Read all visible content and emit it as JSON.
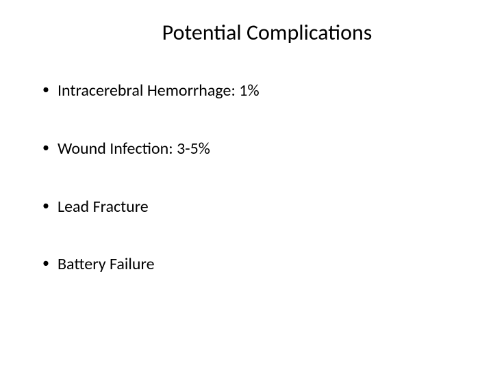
{
  "slide": {
    "title": "Potential Complications",
    "title_fontsize": 32,
    "title_color": "#000000",
    "background_color": "#ffffff",
    "bullets": [
      {
        "text": "Intracerebral Hemorrhage: 1%"
      },
      {
        "text": "Wound Infection: 3-5%"
      },
      {
        "text": "Lead Fracture"
      },
      {
        "text": "Battery Failure"
      }
    ],
    "bullet_fontsize": 24,
    "bullet_color": "#000000",
    "bullet_marker": "•",
    "bullet_spacing": 56,
    "font_family": "Calibri"
  }
}
